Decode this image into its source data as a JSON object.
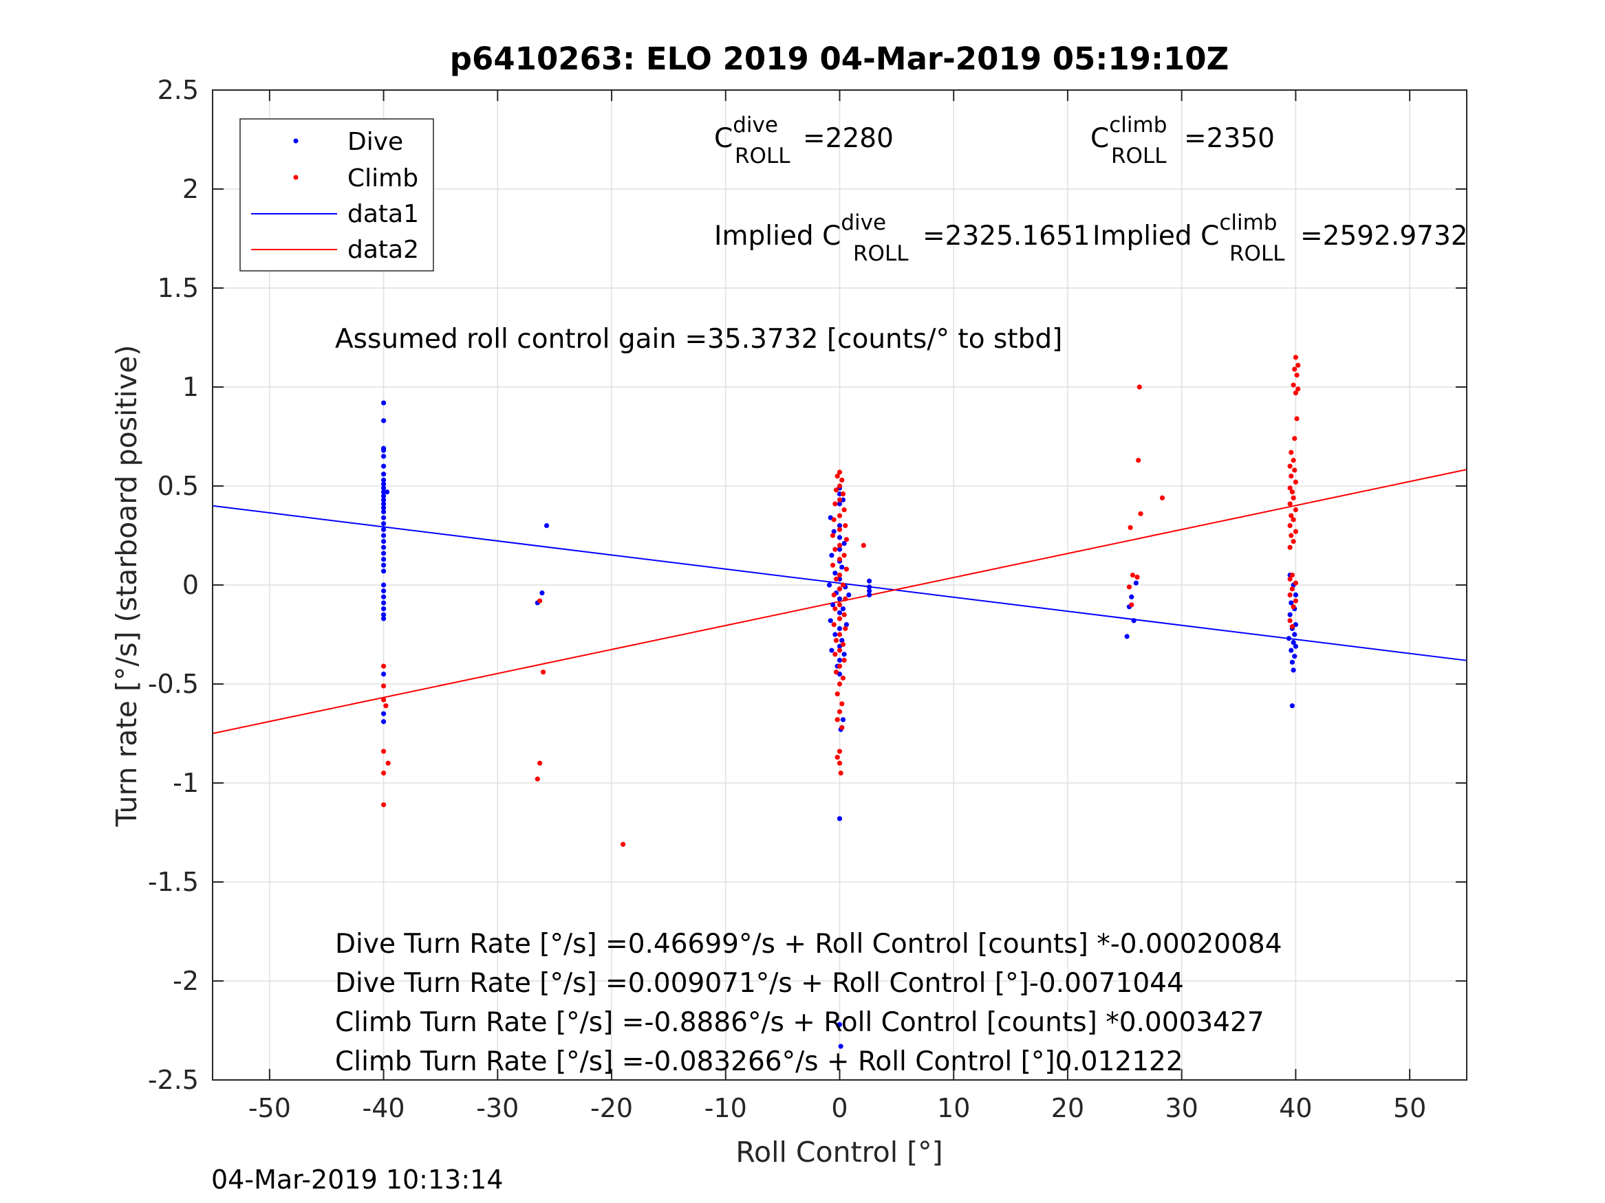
{
  "chart_data": {
    "type": "scatter",
    "title": "p6410263: ELO 2019 04-Mar-2019 05:19:10Z",
    "xlabel": "Roll Control [°]",
    "ylabel": "Turn rate [°/s] (starboard positive)",
    "xlim": [
      -55,
      55
    ],
    "ylim": [
      -2.5,
      2.5
    ],
    "xticks": [
      -50,
      -40,
      -30,
      -20,
      -10,
      0,
      10,
      20,
      30,
      40,
      50
    ],
    "yticks": [
      -2.5,
      -2,
      -1.5,
      -1,
      -0.5,
      0,
      0.5,
      1,
      1.5,
      2,
      2.5
    ],
    "grid": true,
    "legend_position": "top-left",
    "series": [
      {
        "name": "Dive",
        "kind": "points",
        "color": "#0000ff",
        "points": [
          [
            -40,
            0.92
          ],
          [
            -40,
            0.83
          ],
          [
            -40,
            0.69
          ],
          [
            -40,
            0.68
          ],
          [
            -40,
            0.65
          ],
          [
            -40,
            0.6
          ],
          [
            -40,
            0.56
          ],
          [
            -40,
            0.53
          ],
          [
            -40,
            0.51
          ],
          [
            -40,
            0.49
          ],
          [
            -40,
            0.47
          ],
          [
            -39.7,
            0.47
          ],
          [
            -40,
            0.45
          ],
          [
            -40,
            0.43
          ],
          [
            -40,
            0.41
          ],
          [
            -40,
            0.39
          ],
          [
            -40,
            0.37
          ],
          [
            -40,
            0.34
          ],
          [
            -40,
            0.31
          ],
          [
            -40,
            0.28
          ],
          [
            -40,
            0.25
          ],
          [
            -40,
            0.22
          ],
          [
            -40,
            0.19
          ],
          [
            -40,
            0.16
          ],
          [
            -40,
            0.13
          ],
          [
            -40,
            0.1
          ],
          [
            -40,
            0.07
          ],
          [
            -40,
            0.0
          ],
          [
            -40,
            -0.03
          ],
          [
            -40,
            -0.06
          ],
          [
            -40,
            -0.09
          ],
          [
            -40,
            -0.12
          ],
          [
            -40,
            -0.15
          ],
          [
            -40,
            -0.17
          ],
          [
            -40,
            -0.45
          ],
          [
            -40,
            -0.65
          ],
          [
            -40,
            -0.69
          ],
          [
            -25.7,
            0.3
          ],
          [
            -26.1,
            -0.04
          ],
          [
            -26.5,
            -0.09
          ],
          [
            0,
            0.49
          ],
          [
            0,
            0.46
          ],
          [
            0.3,
            0.43
          ],
          [
            0,
            0.41
          ],
          [
            -0.8,
            0.34
          ],
          [
            0,
            0.3
          ],
          [
            -0.5,
            0.27
          ],
          [
            0,
            0.24
          ],
          [
            0.4,
            0.21
          ],
          [
            0,
            0.18
          ],
          [
            -0.7,
            0.15
          ],
          [
            0,
            0.12
          ],
          [
            0.2,
            0.09
          ],
          [
            -0.4,
            0.06
          ],
          [
            0,
            0.03
          ],
          [
            -0.9,
            0.0
          ],
          [
            0.5,
            -0.01
          ],
          [
            0,
            -0.02
          ],
          [
            -0.3,
            -0.04
          ],
          [
            0.8,
            -0.05
          ],
          [
            0,
            -0.07
          ],
          [
            -0.6,
            -0.1
          ],
          [
            0.3,
            -0.12
          ],
          [
            0,
            -0.14
          ],
          [
            -0.8,
            -0.18
          ],
          [
            0.6,
            -0.2
          ],
          [
            0,
            -0.22
          ],
          [
            -0.4,
            -0.25
          ],
          [
            0.2,
            -0.28
          ],
          [
            0,
            -0.31
          ],
          [
            -0.7,
            -0.33
          ],
          [
            0.4,
            -0.35
          ],
          [
            0,
            -0.38
          ],
          [
            -0.2,
            -0.41
          ],
          [
            0,
            -0.45
          ],
          [
            0.3,
            -0.68
          ],
          [
            0.1,
            -0.73
          ],
          [
            0,
            -1.18
          ],
          [
            0,
            -2.22
          ],
          [
            0.1,
            -2.33
          ],
          [
            2.6,
            0.02
          ],
          [
            2.6,
            -0.01
          ],
          [
            2.6,
            -0.03
          ],
          [
            2.6,
            -0.05
          ],
          [
            25.6,
            -0.06
          ],
          [
            25.4,
            -0.11
          ],
          [
            25.8,
            -0.18
          ],
          [
            25.2,
            -0.26
          ],
          [
            26,
            0.01
          ],
          [
            39.5,
            0.05
          ],
          [
            39.8,
            0.0
          ],
          [
            40,
            -0.05
          ],
          [
            39.6,
            -0.09
          ],
          [
            39.9,
            -0.12
          ],
          [
            39.5,
            -0.15
          ],
          [
            40,
            -0.2
          ],
          [
            39.7,
            -0.22
          ],
          [
            39.9,
            -0.25
          ],
          [
            39.4,
            -0.27
          ],
          [
            39.8,
            -0.29
          ],
          [
            40,
            -0.31
          ],
          [
            39.6,
            -0.33
          ],
          [
            39.9,
            -0.36
          ],
          [
            39.7,
            -0.39
          ],
          [
            39.8,
            -0.43
          ],
          [
            39.7,
            -0.61
          ]
        ]
      },
      {
        "name": "Climb",
        "kind": "points",
        "color": "#ff0000",
        "points": [
          [
            -40,
            -0.41
          ],
          [
            -40,
            -0.51
          ],
          [
            -40,
            -0.58
          ],
          [
            -39.8,
            -0.61
          ],
          [
            -40,
            -0.84
          ],
          [
            -39.6,
            -0.9
          ],
          [
            -40,
            -0.95
          ],
          [
            -40,
            -1.11
          ],
          [
            -26.3,
            -0.08
          ],
          [
            -26,
            -0.44
          ],
          [
            -26.3,
            -0.9
          ],
          [
            -26.5,
            -0.98
          ],
          [
            -19,
            -1.31
          ],
          [
            0,
            0.57
          ],
          [
            -0.2,
            0.55
          ],
          [
            0.2,
            0.53
          ],
          [
            0,
            0.5
          ],
          [
            -0.3,
            0.48
          ],
          [
            0.3,
            0.46
          ],
          [
            0,
            0.43
          ],
          [
            -0.4,
            0.41
          ],
          [
            0.4,
            0.38
          ],
          [
            0,
            0.35
          ],
          [
            -0.5,
            0.33
          ],
          [
            0.5,
            0.3
          ],
          [
            0,
            0.28
          ],
          [
            -0.6,
            0.25
          ],
          [
            0.6,
            0.23
          ],
          [
            0,
            0.2
          ],
          [
            -0.4,
            0.18
          ],
          [
            0.4,
            0.15
          ],
          [
            0,
            0.13
          ],
          [
            -0.6,
            0.1
          ],
          [
            0.6,
            0.08
          ],
          [
            0,
            0.05
          ],
          [
            -0.3,
            0.03
          ],
          [
            0.3,
            0.0
          ],
          [
            0,
            -0.02
          ],
          [
            -0.5,
            -0.05
          ],
          [
            0.5,
            -0.07
          ],
          [
            0,
            -0.1
          ],
          [
            -0.4,
            -0.12
          ],
          [
            0.4,
            -0.15
          ],
          [
            0,
            -0.17
          ],
          [
            -0.5,
            -0.2
          ],
          [
            0.5,
            -0.22
          ],
          [
            0,
            -0.25
          ],
          [
            -0.3,
            -0.28
          ],
          [
            0.3,
            -0.3
          ],
          [
            0,
            -0.33
          ],
          [
            -0.4,
            -0.35
          ],
          [
            0.4,
            -0.38
          ],
          [
            0,
            -0.41
          ],
          [
            -0.3,
            -0.44
          ],
          [
            0.3,
            -0.47
          ],
          [
            0,
            -0.5
          ],
          [
            -0.2,
            -0.55
          ],
          [
            0.2,
            -0.6
          ],
          [
            0,
            -0.64
          ],
          [
            -0.2,
            -0.68
          ],
          [
            0.2,
            -0.72
          ],
          [
            0,
            -0.84
          ],
          [
            -0.2,
            -0.87
          ],
          [
            0,
            -0.9
          ],
          [
            0.1,
            -0.95
          ],
          [
            2.1,
            0.2
          ],
          [
            25.5,
            0.29
          ],
          [
            25.4,
            -0.01
          ],
          [
            25.7,
            0.05
          ],
          [
            26.1,
            0.04
          ],
          [
            25.6,
            -0.1
          ],
          [
            26.3,
            1.0
          ],
          [
            26.2,
            0.63
          ],
          [
            26.4,
            0.36
          ],
          [
            28.3,
            0.44
          ],
          [
            40,
            1.15
          ],
          [
            40.2,
            1.11
          ],
          [
            39.9,
            1.09
          ],
          [
            40.1,
            1.06
          ],
          [
            39.8,
            1.01
          ],
          [
            40.2,
            0.99
          ],
          [
            40,
            0.97
          ],
          [
            40.1,
            0.84
          ],
          [
            39.9,
            0.74
          ],
          [
            39.6,
            0.67
          ],
          [
            39.8,
            0.63
          ],
          [
            39.5,
            0.6
          ],
          [
            39.9,
            0.58
          ],
          [
            39.6,
            0.55
          ],
          [
            40,
            0.52
          ],
          [
            39.5,
            0.49
          ],
          [
            39.7,
            0.47
          ],
          [
            39.8,
            0.44
          ],
          [
            39.5,
            0.41
          ],
          [
            40,
            0.38
          ],
          [
            39.6,
            0.35
          ],
          [
            39.8,
            0.33
          ],
          [
            39.5,
            0.3
          ],
          [
            40,
            0.27
          ],
          [
            39.6,
            0.25
          ],
          [
            39.8,
            0.22
          ],
          [
            39.5,
            0.19
          ],
          [
            39.7,
            0.05
          ],
          [
            39.5,
            0.03
          ],
          [
            40,
            0.01
          ],
          [
            39.7,
            -0.02
          ],
          [
            39.5,
            -0.05
          ],
          [
            40,
            -0.08
          ],
          [
            39.8,
            -0.11
          ],
          [
            39.5,
            -0.18
          ],
          [
            39.7,
            -0.21
          ]
        ]
      },
      {
        "name": "data1",
        "kind": "line",
        "color": "#0000ff",
        "x": [
          -55,
          55
        ],
        "y": [
          0.4001,
          -0.3813
        ]
      },
      {
        "name": "data2",
        "kind": "line",
        "color": "#ff0000",
        "x": [
          -55,
          55
        ],
        "y": [
          -0.75,
          0.5834
        ]
      }
    ],
    "annotations": {
      "c_dive_base": "C",
      "c_dive_sup": "dive",
      "c_dive_sub": "ROLL",
      "c_dive_value": "=2280",
      "c_climb_base": "C",
      "c_climb_sup": "climb",
      "c_climb_sub": "ROLL",
      "c_climb_value": "=2350",
      "implied_dive_prefix": "Implied C",
      "implied_dive_sup": "dive",
      "implied_dive_sub": "ROLL",
      "implied_dive_value": "=2325.1651",
      "implied_climb_prefix": "Implied C",
      "implied_climb_sup": "climb",
      "implied_climb_sub": "ROLL",
      "implied_climb_value": "=2592.9732",
      "gain_text": "Assumed roll control gain =35.3732 [counts/° to stbd]",
      "fit_lines": [
        "Dive Turn Rate [°/s] =0.46699°/s + Roll Control [counts] *-0.00020084",
        "Dive Turn Rate [°/s] =0.009071°/s + Roll Control [°]-0.0071044",
        "Climb Turn Rate [°/s] =-0.8886°/s + Roll Control [counts] *0.0003427",
        "Climb Turn Rate [°/s] =-0.083266°/s + Roll Control [°]0.012122"
      ]
    }
  },
  "footer": {
    "timestamp": "04-Mar-2019 10:13:14"
  }
}
